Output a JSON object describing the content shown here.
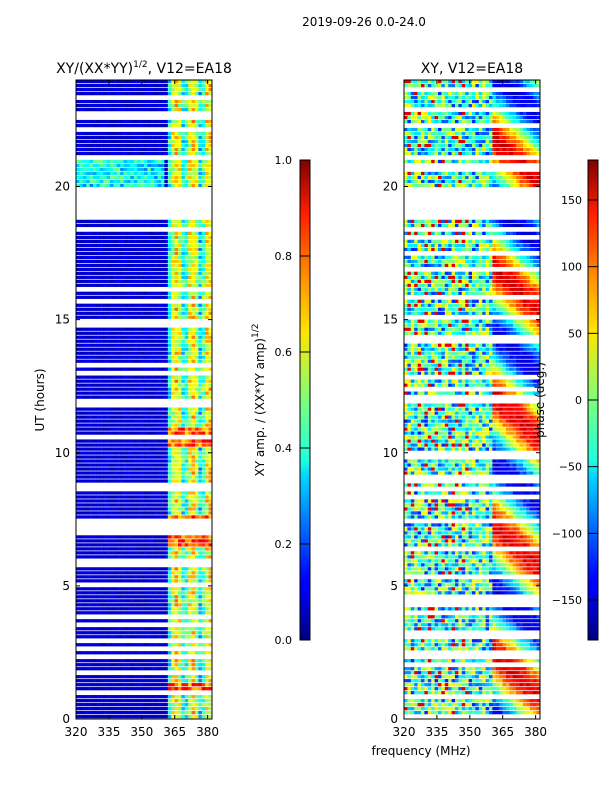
{
  "figure": {
    "suptitle": "2019-09-26 0.0-24.0",
    "xlabel": "frequency (MHz)"
  },
  "chart_data": [
    {
      "type": "heatmap",
      "title_main": "XY/(XX*YY)",
      "title_exp": "1/2",
      "title_rest": ", V12=EA18",
      "xlabel": "",
      "ylabel": "UT (hours)",
      "xlim": [
        320,
        382
      ],
      "ylim": [
        0,
        24
      ],
      "xticks": [
        320,
        335,
        350,
        365,
        380
      ],
      "yticks": [
        0,
        5,
        10,
        15,
        20
      ],
      "colorbar": {
        "label_main": "XY amp. / (XX*YY amp)",
        "label_exp": "1/2",
        "range": [
          0.0,
          1.0
        ],
        "ticks": [
          "0.0",
          "0.2",
          "0.4",
          "0.6",
          "0.8",
          "1.0"
        ],
        "tick_values": [
          0.0,
          0.2,
          0.4,
          0.6,
          0.8,
          1.0
        ]
      },
      "colormap": "jet"
    },
    {
      "type": "heatmap",
      "title_main": "XY, V12=EA18",
      "xlabel": "frequency (MHz)",
      "ylabel": "",
      "xlim": [
        320,
        382
      ],
      "ylim": [
        0,
        24
      ],
      "xticks": [
        320,
        335,
        350,
        365,
        380
      ],
      "yticks": [
        0,
        5,
        10,
        15,
        20
      ],
      "colorbar": {
        "label_main": "phase (deg.)",
        "range": [
          -180,
          180
        ],
        "ticks": [
          "150",
          "100",
          "50",
          "0",
          "−50",
          "−100",
          "−150"
        ],
        "tick_values": [
          150,
          100,
          50,
          0,
          -50,
          -100,
          -150
        ]
      },
      "colormap": "jet"
    }
  ]
}
